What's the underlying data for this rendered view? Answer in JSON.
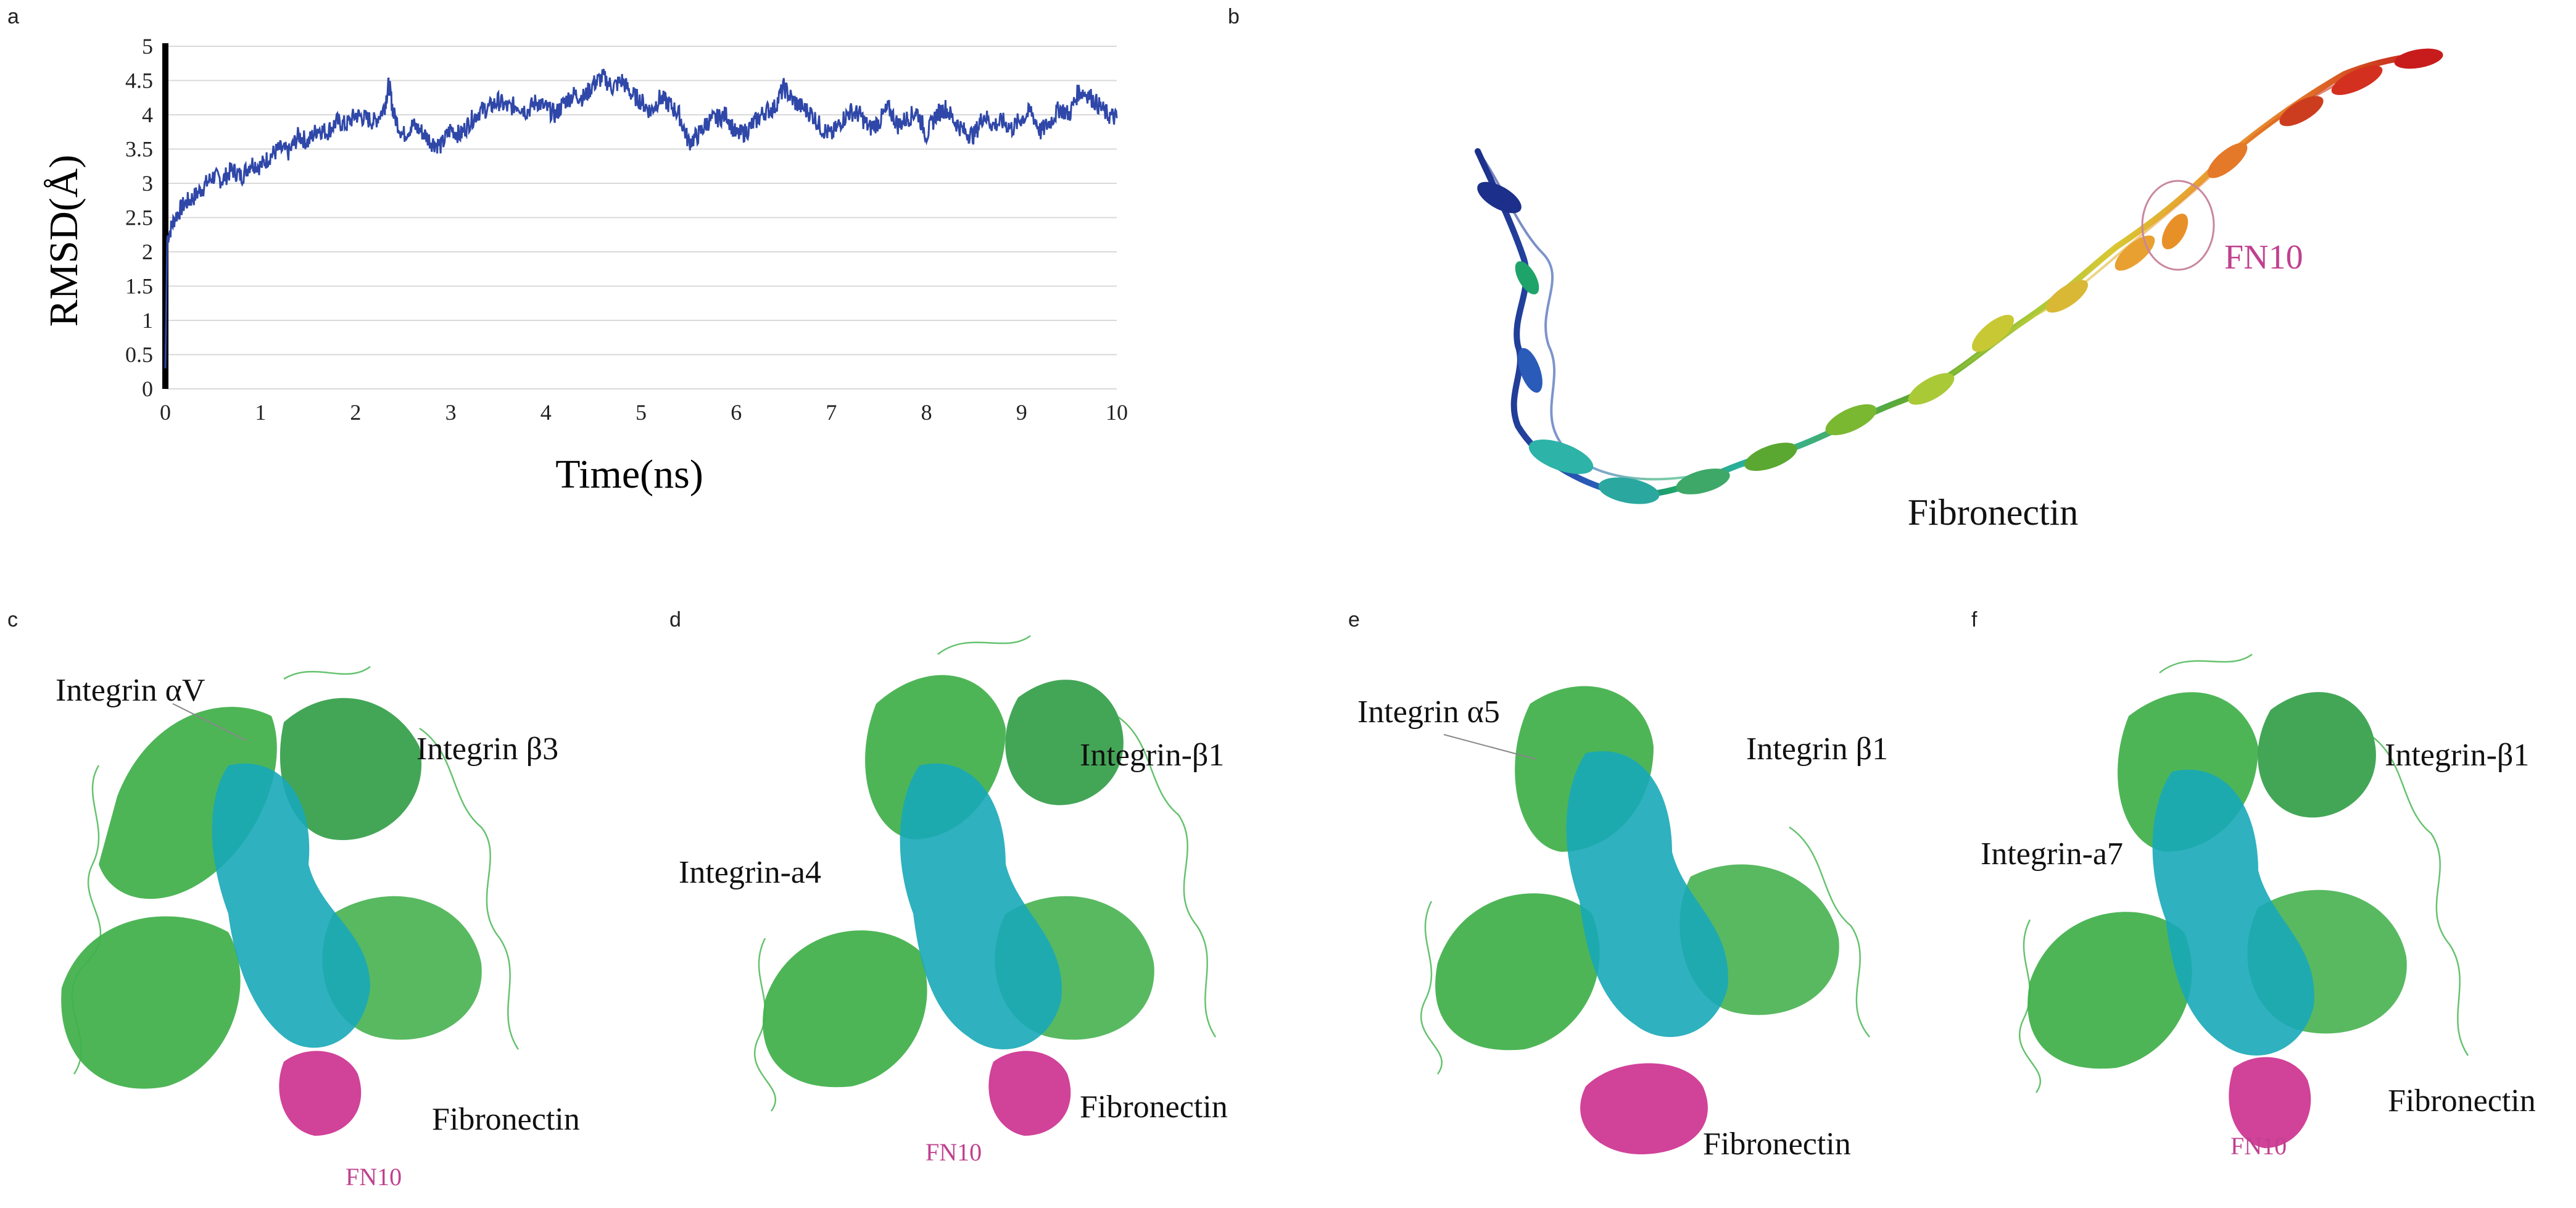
{
  "panels": {
    "a": "a",
    "b": "b",
    "c": "c",
    "d": "d",
    "e": "e",
    "f": "f"
  },
  "chart_data": {
    "type": "line",
    "title": "",
    "xlabel": "Time(ns)",
    "ylabel": "RMSD(Å)",
    "xlim": [
      0,
      10
    ],
    "ylim": [
      0,
      5
    ],
    "xticks": [
      "0",
      "1",
      "2",
      "3",
      "4",
      "5",
      "6",
      "7",
      "8",
      "9",
      "10"
    ],
    "yticks": [
      "0",
      "0.5",
      "1",
      "1.5",
      "2",
      "2.5",
      "3",
      "3.5",
      "4",
      "4.5",
      "5"
    ],
    "grid": true,
    "legend": "none",
    "series": [
      {
        "color": "#2f47a8",
        "x": [
          0,
          0.02,
          0.1,
          0.2,
          0.3,
          0.4,
          0.5,
          0.6,
          0.7,
          0.8,
          0.9,
          1.0,
          1.1,
          1.2,
          1.3,
          1.4,
          1.5,
          1.6,
          1.7,
          1.8,
          1.9,
          2.0,
          2.1,
          2.2,
          2.3,
          2.35,
          2.4,
          2.5,
          2.6,
          2.7,
          2.8,
          2.9,
          3.0,
          3.1,
          3.2,
          3.3,
          3.4,
          3.5,
          3.6,
          3.7,
          3.8,
          3.9,
          4.0,
          4.1,
          4.2,
          4.3,
          4.4,
          4.5,
          4.6,
          4.7,
          4.8,
          4.9,
          5.0,
          5.1,
          5.2,
          5.3,
          5.4,
          5.5,
          5.6,
          5.7,
          5.8,
          5.9,
          6.0,
          6.1,
          6.2,
          6.3,
          6.4,
          6.5,
          6.6,
          6.7,
          6.8,
          6.9,
          7.0,
          7.1,
          7.2,
          7.3,
          7.4,
          7.5,
          7.6,
          7.7,
          7.8,
          7.9,
          8.0,
          8.1,
          8.2,
          8.3,
          8.4,
          8.5,
          8.6,
          8.7,
          8.8,
          8.9,
          9.0,
          9.1,
          9.2,
          9.3,
          9.4,
          9.5,
          9.6,
          9.7,
          9.8,
          9.9,
          10.0
        ],
        "y": [
          0.3,
          2.2,
          2.5,
          2.7,
          2.8,
          2.95,
          3.1,
          3.05,
          3.2,
          3.1,
          3.3,
          3.25,
          3.4,
          3.5,
          3.45,
          3.7,
          3.6,
          3.8,
          3.75,
          3.9,
          3.85,
          4.0,
          3.95,
          3.9,
          4.1,
          4.45,
          4.0,
          3.7,
          3.85,
          3.75,
          3.6,
          3.55,
          3.8,
          3.7,
          3.9,
          4.05,
          4.1,
          4.2,
          4.1,
          4.15,
          4.05,
          4.2,
          4.1,
          4.0,
          4.2,
          4.3,
          4.25,
          4.45,
          4.55,
          4.4,
          4.5,
          4.3,
          4.2,
          4.05,
          4.25,
          4.15,
          4.0,
          3.6,
          3.7,
          3.9,
          3.95,
          4.0,
          3.7,
          3.75,
          3.9,
          4.05,
          4.1,
          4.4,
          4.2,
          4.1,
          4.0,
          3.8,
          3.7,
          3.9,
          4.05,
          4.0,
          3.8,
          3.9,
          4.1,
          3.85,
          3.95,
          4.05,
          3.7,
          4.0,
          4.1,
          3.9,
          3.75,
          3.7,
          4.0,
          3.85,
          3.9,
          3.8,
          3.95,
          4.05,
          3.75,
          3.9,
          4.1,
          4.0,
          4.35,
          4.3,
          4.15,
          4.0,
          3.95
        ]
      }
    ]
  },
  "panel_b": {
    "title": "Fibronectin",
    "highlight_label": "FN10",
    "colors": [
      "#1c2f8a",
      "#2a5bb8",
      "#1ea46a",
      "#2db3a8",
      "#5aa832",
      "#a9c937",
      "#d8c834",
      "#e8a030",
      "#e5792a",
      "#cc3d1f",
      "#c81c1c"
    ]
  },
  "panel_c": {
    "labels": {
      "alpha": "Integrin αV",
      "beta": "Integrin β3",
      "fn": "Fibronectin",
      "fn10": "FN10"
    }
  },
  "panel_d": {
    "labels": {
      "alpha": "Integrin-a4",
      "beta": "Integrin-β1",
      "fn": "Fibronectin",
      "fn10": "FN10"
    }
  },
  "panel_e": {
    "labels": {
      "alpha": "Integrin α5",
      "beta": "Integrin β1",
      "fn": "Fibronectin"
    }
  },
  "panel_f": {
    "labels": {
      "alpha": "Integrin-a7",
      "beta": "Integrin-β1",
      "fn": "Fibronectin",
      "fn10": "FN10"
    }
  },
  "colors": {
    "line": "#2f47a8",
    "integrin_green": "#2fa83a",
    "integrin_cyan": "#18a9b8",
    "fibronectin_magenta": "#cc2e8e",
    "fn10_text": "#c0408f",
    "circle": "#c9869f"
  }
}
